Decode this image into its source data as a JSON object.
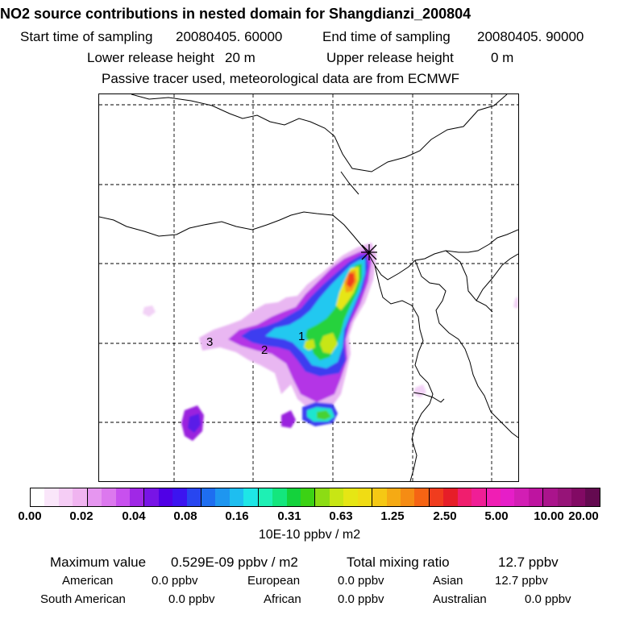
{
  "header": {
    "title": "NO2 source contributions in nested domain for Shangdianzi_200804",
    "start_label": "Start time of sampling",
    "start_value": "20080405. 60000",
    "end_label": "End time of sampling",
    "end_value": "20080405. 90000",
    "lower_label": "Lower release height",
    "lower_value": "20 m",
    "upper_label": "Upper release height",
    "upper_value": "0 m",
    "note": "Passive tracer used, meteorological data are from ECMWF"
  },
  "map": {
    "site_marker": "x-cross-marker",
    "source_labels": [
      "1",
      "2",
      "3"
    ]
  },
  "colorbar": {
    "ticks": [
      "0.00",
      "0.02",
      "0.04",
      "0.08",
      "0.16",
      "0.31",
      "0.63",
      "1.25",
      "2.50",
      "5.00",
      "10.00",
      "20.00"
    ],
    "colors": [
      "#ffffff",
      "#fae6fa",
      "#f5cdf5",
      "#f0b4f0",
      "#e696f0",
      "#dc78ee",
      "#c850ee",
      "#a028e6",
      "#7814e6",
      "#5000e6",
      "#3c14f0",
      "#2846f0",
      "#1e6ef0",
      "#1e96f0",
      "#1ebef0",
      "#1ee6e6",
      "#1ef0b4",
      "#14e67d",
      "#14d23c",
      "#3cd214",
      "#8cdc14",
      "#c8e614",
      "#e6e614",
      "#f0dc14",
      "#f5c814",
      "#f5aa14",
      "#f58c14",
      "#f56414",
      "#f03c1e",
      "#e61e28",
      "#f01e6e",
      "#f01e96",
      "#f01eb4",
      "#e61ec8",
      "#d21eb4",
      "#be14a0",
      "#aa148c",
      "#961478",
      "#820a64",
      "#640a50"
    ],
    "units": "10E-10 ppbv / m2"
  },
  "stats": {
    "max_label": "Maximum value",
    "max_value": "0.529E-09 ppbv / m2",
    "total_label": "Total mixing ratio",
    "total_value": "12.7 ppbv",
    "regions": [
      {
        "name": "American",
        "value": "0.0 ppbv"
      },
      {
        "name": "European",
        "value": "0.0 ppbv"
      },
      {
        "name": "Asian",
        "value": "12.7 ppbv"
      },
      {
        "name": "South American",
        "value": "0.0 ppbv"
      },
      {
        "name": "African",
        "value": "0.0 ppbv"
      },
      {
        "name": "Australian",
        "value": "0.0 ppbv"
      }
    ]
  }
}
